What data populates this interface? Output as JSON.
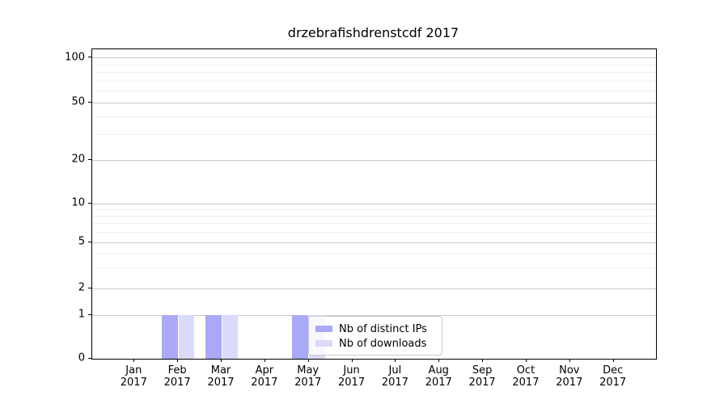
{
  "chart_data": {
    "type": "bar",
    "title": "drzebrafishdrenstcdf 2017",
    "x_tick_months": [
      "Jan",
      "Feb",
      "Mar",
      "Apr",
      "May",
      "Jun",
      "Jul",
      "Aug",
      "Sep",
      "Oct",
      "Nov",
      "Dec"
    ],
    "x_tick_year": "2017",
    "y_ticks": [
      0,
      1,
      2,
      5,
      10,
      20,
      50,
      100
    ],
    "y_scale": "symlog",
    "ylim": [
      0,
      115
    ],
    "grid": "horizontal, major and minor log lines",
    "legend_position": "inside axes, lower middle-left",
    "series": [
      {
        "name": "Nb of distinct IPs",
        "color": "#a9a9f7",
        "values": [
          0,
          1,
          1,
          0,
          1,
          0,
          0,
          0,
          0,
          0,
          0,
          0
        ]
      },
      {
        "name": "Nb of downloads",
        "color": "#dadafa",
        "values": [
          0,
          1,
          1,
          0,
          1,
          0,
          0,
          0,
          0,
          0,
          0,
          0
        ]
      }
    ]
  }
}
